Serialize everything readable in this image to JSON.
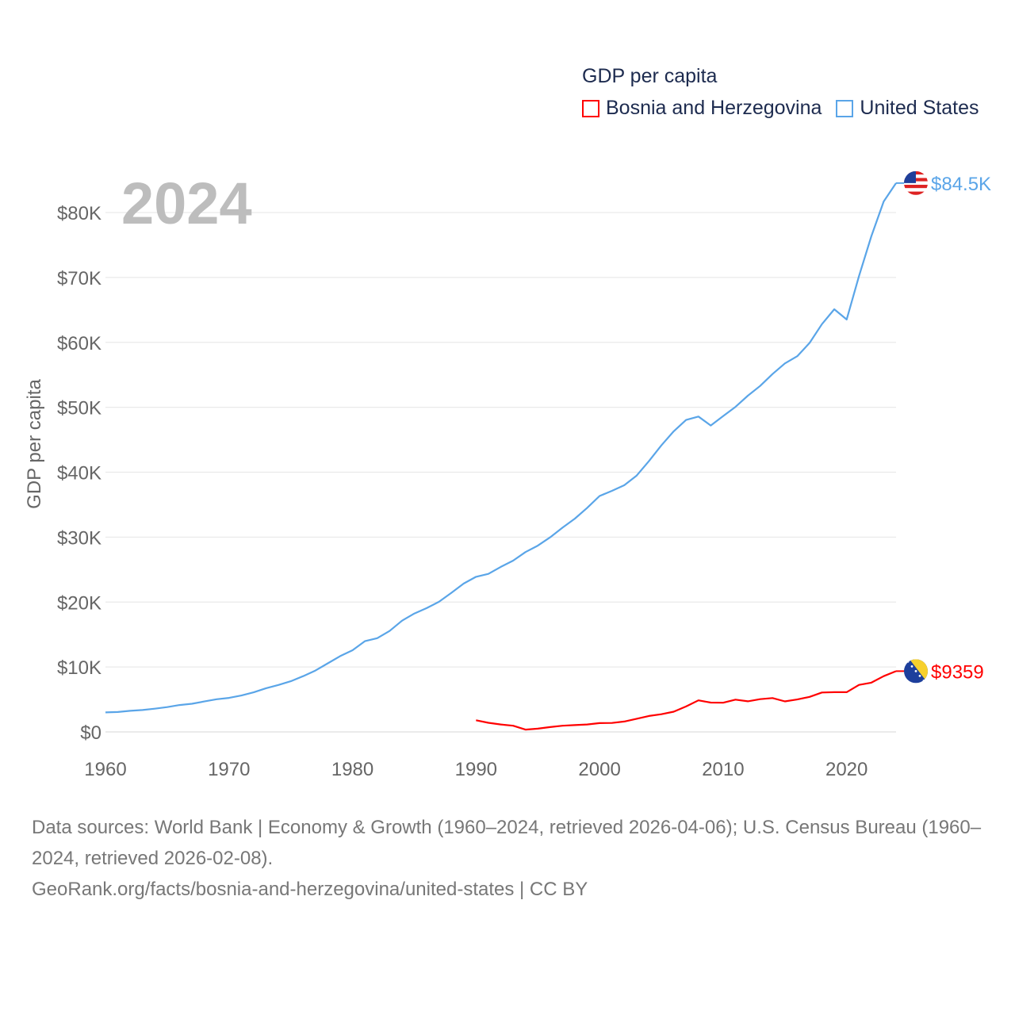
{
  "chart_data": {
    "type": "line",
    "title": "GDP per capita",
    "year_label": "2024",
    "ylabel": "GDP per capita",
    "xlabel": "",
    "xlim": [
      1960,
      2024
    ],
    "ylim": [
      0,
      85000
    ],
    "x_ticks": [
      1960,
      1970,
      1980,
      1990,
      2000,
      2010,
      2020
    ],
    "x_tick_labels": [
      "1960",
      "1970",
      "1980",
      "1990",
      "2000",
      "2010",
      "2020"
    ],
    "y_ticks": [
      0,
      10000,
      20000,
      30000,
      40000,
      50000,
      60000,
      70000,
      80000
    ],
    "y_tick_labels": [
      "$0",
      "$10K",
      "$20K",
      "$30K",
      "$40K",
      "$50K",
      "$60K",
      "$70K",
      "$80K"
    ],
    "grid": true,
    "legend_placement": "top-right",
    "series": [
      {
        "name": "Bosnia and Herzegovina",
        "color": "#ff0000",
        "end_label": "$9359",
        "flag": "bosnia-flag",
        "x": [
          1990,
          1991,
          1992,
          1993,
          1994,
          1995,
          1996,
          1997,
          1998,
          1999,
          2000,
          2001,
          2002,
          2003,
          2004,
          2005,
          2006,
          2007,
          2008,
          2009,
          2010,
          2011,
          2012,
          2013,
          2014,
          2015,
          2016,
          2017,
          2018,
          2019,
          2020,
          2021,
          2022,
          2023,
          2024
        ],
        "values": [
          1800,
          1400,
          1150,
          950,
          350,
          500,
          750,
          950,
          1050,
          1150,
          1350,
          1380,
          1600,
          2030,
          2460,
          2720,
          3110,
          3920,
          4860,
          4520,
          4500,
          4970,
          4720,
          5050,
          5220,
          4700,
          4990,
          5400,
          6070,
          6120,
          6120,
          7240,
          7580,
          8590,
          9359
        ]
      },
      {
        "name": "United States",
        "color": "#5aa5e8",
        "end_label": "$84.5K",
        "flag": "us-flag",
        "x": [
          1960,
          1961,
          1962,
          1963,
          1964,
          1965,
          1966,
          1967,
          1968,
          1969,
          1970,
          1971,
          1972,
          1973,
          1974,
          1975,
          1976,
          1977,
          1978,
          1979,
          1980,
          1981,
          1982,
          1983,
          1984,
          1985,
          1986,
          1987,
          1988,
          1989,
          1990,
          1991,
          1992,
          1993,
          1994,
          1995,
          1996,
          1997,
          1998,
          1999,
          2000,
          2001,
          2002,
          2003,
          2004,
          2005,
          2006,
          2007,
          2008,
          2009,
          2010,
          2011,
          2012,
          2013,
          2014,
          2015,
          2016,
          2017,
          2018,
          2019,
          2020,
          2021,
          2022,
          2023,
          2024
        ],
        "values": [
          3007,
          3067,
          3244,
          3375,
          3574,
          3828,
          4146,
          4336,
          4696,
          5032,
          5234,
          5609,
          6094,
          6726,
          7226,
          7801,
          8592,
          9453,
          10565,
          11674,
          12575,
          13976,
          14434,
          15544,
          17121,
          18237,
          19071,
          20039,
          21417,
          22857,
          23889,
          24342,
          25419,
          26387,
          27695,
          28691,
          29968,
          31459,
          32854,
          34516,
          36330,
          37134,
          37998,
          39490,
          41725,
          44123,
          46302,
          48050,
          48570,
          47195,
          48651,
          50066,
          51784,
          53291,
          55124,
          56763,
          57867,
          59915,
          62805,
          65095,
          63528,
          70219,
          76330,
          81695,
          84534
        ]
      }
    ]
  },
  "source": {
    "line1": "Data sources: World Bank | Economy & Growth (1960–2024, retrieved 2026-04-06); U.S. Census Bureau (1960–2024, retrieved 2026-02-08).",
    "line2": "GeoRank.org/facts/bosnia-and-herzegovina/united-states | CC BY"
  }
}
